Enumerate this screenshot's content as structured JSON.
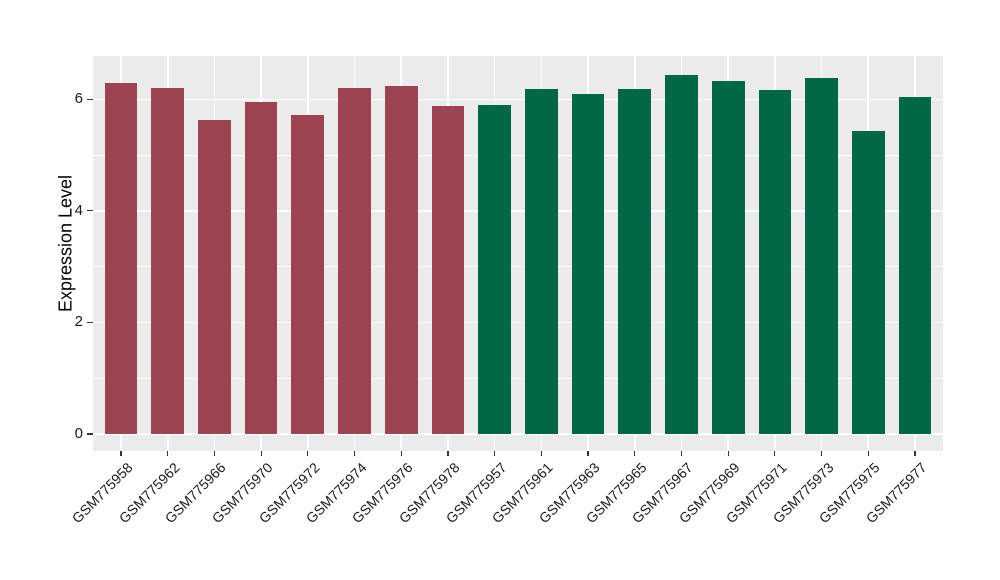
{
  "figure": {
    "background": "#FFFFFF",
    "panel_background": "#EBEBEB",
    "grid_color": "#FFFFFF",
    "tick_mark_color": "#333333",
    "axis_text_color": "#1a1a1a",
    "axis_title_color": "#000000"
  },
  "chart_data": {
    "type": "bar",
    "title": "",
    "xlabel": "",
    "ylabel": "Expression Level",
    "yticks": [
      0,
      2,
      4,
      6
    ],
    "ylim": [
      0,
      6.78
    ],
    "grid": true,
    "legend": "none",
    "categories": [
      "GSM775958",
      "GSM775962",
      "GSM775966",
      "GSM775970",
      "GSM775972",
      "GSM775974",
      "GSM775976",
      "GSM775978",
      "GSM775957",
      "GSM775961",
      "GSM775963",
      "GSM775965",
      "GSM775967",
      "GSM775969",
      "GSM775971",
      "GSM775973",
      "GSM775975",
      "GSM775977"
    ],
    "values": [
      6.3,
      6.2,
      5.63,
      5.95,
      5.72,
      6.2,
      6.23,
      5.88,
      5.9,
      6.19,
      6.09,
      6.19,
      6.44,
      6.32,
      6.17,
      6.38,
      5.44,
      6.04
    ],
    "bar_colors": [
      "#9D4452",
      "#9D4452",
      "#9D4452",
      "#9D4452",
      "#9D4452",
      "#9D4452",
      "#9D4452",
      "#9D4452",
      "#026649",
      "#026649",
      "#026649",
      "#026649",
      "#026649",
      "#026649",
      "#026649",
      "#026649",
      "#026649",
      "#026649"
    ]
  }
}
